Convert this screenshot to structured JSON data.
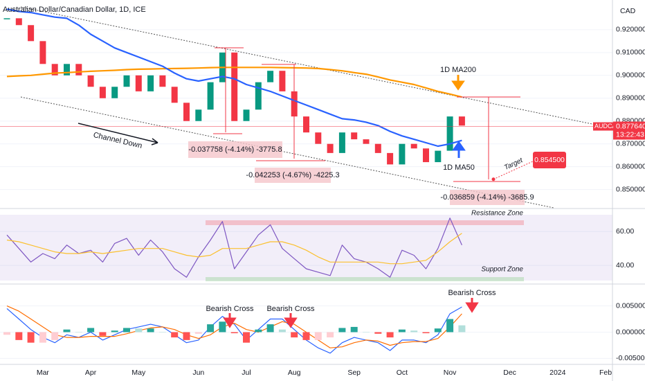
{
  "title": "Australian Dollar/Canadian Dollar, 1D, ICE",
  "chart_data": [
    {
      "type": "candlestick",
      "currency": "CAD",
      "categories": [
        null,
        null,
        null,
        "Mar",
        null,
        null,
        null,
        "Apr",
        null,
        null,
        null,
        "May",
        null,
        null,
        null,
        null,
        "Jun",
        null,
        null,
        null,
        "Jul",
        null,
        null,
        null,
        "Aug",
        null,
        null,
        null,
        null,
        "Sep",
        null,
        null,
        null,
        "Oct",
        null,
        null,
        null,
        "Nov",
        null,
        null,
        null,
        null,
        "Dec",
        null,
        null,
        null,
        "2024",
        null,
        null,
        null,
        "Feb"
      ],
      "series": [
        {
          "name": "AUDCAD",
          "up_color": "#089981",
          "down_color": "#f23645",
          "values": [
            0.925,
            0.922,
            0.915,
            0.905,
            0.9,
            0.905,
            0.9,
            0.895,
            0.89,
            0.895,
            0.9,
            0.893,
            0.9,
            0.895,
            0.888,
            0.88,
            0.885,
            0.897,
            0.91,
            0.88,
            0.885,
            0.897,
            0.902,
            0.893,
            0.882,
            0.875,
            0.87,
            0.866,
            0.875,
            0.872,
            0.87,
            0.866,
            0.861,
            0.87,
            0.868,
            0.862,
            0.867,
            0.882,
            0.878,
            null,
            null,
            null,
            null,
            null,
            null,
            null,
            null,
            null,
            null,
            null,
            null
          ]
        },
        {
          "name": "1D MA200",
          "color": "#ff9800",
          "values": [
            0.8995,
            0.8998,
            0.9,
            0.9005,
            0.901,
            0.9012,
            0.9015,
            0.9018,
            0.902,
            0.9022,
            0.9025,
            0.9027,
            0.9028,
            0.9029,
            0.903,
            0.9031,
            0.9032,
            0.9034,
            0.9035,
            0.9035,
            0.9035,
            0.9035,
            0.9035,
            0.9034,
            0.9033,
            0.9032,
            0.903,
            0.9025,
            0.902,
            0.9012,
            0.9005,
            0.8993,
            0.898,
            0.897,
            0.896,
            0.8945,
            0.893,
            0.8918,
            0.8905,
            null,
            null,
            null,
            null,
            null,
            null,
            null,
            null,
            null,
            null,
            null,
            null
          ]
        },
        {
          "name": "1D MA50",
          "color": "#2962ff",
          "values": [
            0.929,
            0.928,
            0.9275,
            0.9265,
            0.9255,
            0.925,
            0.922,
            0.918,
            0.915,
            0.912,
            0.91,
            0.908,
            0.906,
            0.904,
            0.901,
            0.8985,
            0.8975,
            0.8985,
            0.8995,
            0.8985,
            0.896,
            0.8945,
            0.893,
            0.891,
            0.889,
            0.887,
            0.885,
            0.883,
            0.881,
            0.8805,
            0.8795,
            0.878,
            0.8755,
            0.8735,
            0.872,
            0.8705,
            0.869,
            0.87,
            0.8715,
            null,
            null,
            null,
            null,
            null,
            null,
            null,
            null,
            null,
            null,
            null,
            null
          ]
        }
      ],
      "ylim": [
        0.842,
        0.933
      ],
      "yticks": [
        {
          "value": 0.92,
          "label": "0.920000"
        },
        {
          "value": 0.91,
          "label": "0.910000"
        },
        {
          "value": 0.9,
          "label": "0.900000"
        },
        {
          "value": 0.89,
          "label": "0.890000"
        },
        {
          "value": 0.88,
          "label": "0.880000"
        },
        {
          "value": 0.87,
          "label": "0.870000"
        },
        {
          "value": 0.86,
          "label": "0.860000"
        },
        {
          "value": 0.85,
          "label": "0.850000"
        }
      ],
      "last_value": {
        "value": 0.87764,
        "label": "0.877640"
      },
      "time": "13:22:43",
      "target": {
        "value": 0.8545,
        "label": "0.854500"
      },
      "annotations": {
        "channel": "Channel Down",
        "target": "Target",
        "measures": [
          "-0.037758 (-4.14%) -3775.8",
          "-0.042253 (-4.67%) -4225.3",
          "-0.036859 (-4.14%) -3685.9"
        ]
      }
    },
    {
      "type": "line",
      "series": [
        {
          "color": "#7e57c2",
          "values": [
            58,
            50,
            42,
            47,
            44,
            52,
            47,
            49,
            42,
            53,
            56,
            46,
            55,
            48,
            38,
            33,
            45,
            55,
            66,
            38,
            48,
            58,
            64,
            50,
            44,
            38,
            36,
            34,
            52,
            44,
            42,
            38,
            33,
            49,
            46,
            38,
            50,
            68,
            52,
            null,
            null,
            null,
            null,
            null,
            null,
            null,
            null,
            null,
            null,
            null,
            null
          ]
        },
        {
          "color": "#fbc02d",
          "values": [
            55,
            54,
            52,
            50,
            48,
            47,
            47,
            48,
            47,
            48,
            49,
            50,
            50,
            50,
            48,
            46,
            45,
            46,
            50,
            50,
            50,
            52,
            54,
            54,
            52,
            49,
            45,
            42,
            42,
            42,
            42,
            42,
            41,
            41,
            42,
            43,
            48,
            54,
            59,
            null,
            null,
            null,
            null,
            null,
            null,
            null,
            null,
            null,
            null,
            null,
            null
          ]
        }
      ],
      "ylim": [
        29,
        72
      ],
      "yticks": [
        {
          "value": 60,
          "label": "60.00"
        },
        {
          "value": 40,
          "label": "40.00"
        }
      ],
      "annotations": [
        "Resistance Zone",
        "Support Zone"
      ]
    },
    {
      "type": "line",
      "series": [
        {
          "color": "#2962ff",
          "values": [
            0.0045,
            0.0025,
            0.0005,
            -0.001,
            -0.002,
            -0.0005,
            -0.001,
            0,
            -0.0015,
            -0.0005,
            0.0005,
            0.001,
            0.0015,
            0.001,
            -0.0005,
            -0.002,
            -0.0015,
            0.001,
            0.003,
            0.0015,
            -0.0015,
            0.0005,
            0.0025,
            0.0025,
            0.0005,
            -0.0015,
            -0.003,
            -0.004,
            -0.002,
            -0.001,
            -0.0015,
            -0.002,
            -0.0035,
            -0.0015,
            -0.0015,
            -0.002,
            -0.0005,
            0.0035,
            0.0048,
            null,
            null,
            null,
            null,
            null,
            null,
            null,
            null,
            null,
            null,
            null,
            null
          ]
        },
        {
          "color": "#ff6d00",
          "values": [
            0.005,
            0.004,
            0.0025,
            0.001,
            -0.0005,
            -0.001,
            -0.001,
            -0.0008,
            -0.0008,
            -0.0008,
            -0.0003,
            0.0003,
            0.0008,
            0.001,
            0.0005,
            -0.0005,
            -0.0012,
            -0.0005,
            0.001,
            0.0017,
            0.0005,
            0,
            0.001,
            0.002,
            0.0015,
            0,
            -0.0015,
            -0.003,
            -0.0028,
            -0.002,
            -0.0015,
            -0.0017,
            -0.0025,
            -0.002,
            -0.0018,
            -0.0018,
            -0.0012,
            0.001,
            0.0035,
            null,
            null,
            null,
            null,
            null,
            null,
            null,
            null,
            null,
            null,
            null,
            null
          ]
        },
        {
          "type": "bar",
          "colors": [
            "#26a69a",
            "#b2dfdb",
            "#ffcdd2",
            "#ff5252"
          ],
          "values": [
            -0.0005,
            -0.0015,
            -0.002,
            -0.002,
            -0.0015,
            0.0005,
            0,
            0.0008,
            -0.0007,
            0.0003,
            0.0008,
            0.0007,
            0.0007,
            0,
            -0.001,
            -0.0015,
            -0.0003,
            0.0015,
            0.002,
            -0.0002,
            -0.002,
            0.0005,
            0.0015,
            0.0005,
            -0.001,
            -0.0015,
            -0.0015,
            -0.001,
            0.0008,
            0.001,
            0,
            -0.0003,
            -0.001,
            0.0005,
            0.0003,
            -0.0002,
            0.0007,
            0.0025,
            0.0013,
            null,
            null,
            null,
            null,
            null,
            null,
            null,
            null,
            null,
            null,
            null,
            null
          ]
        }
      ],
      "ylim": [
        -0.006,
        0.0089
      ],
      "yticks": [
        {
          "value": 0.005,
          "label": "0.005000"
        },
        {
          "value": 0,
          "label": "0.000000"
        },
        {
          "value": -0.005,
          "label": "-0.005000"
        }
      ],
      "annotations": [
        "Bearish Cross",
        "Bearish Cross",
        "Bearish Cross"
      ]
    }
  ]
}
